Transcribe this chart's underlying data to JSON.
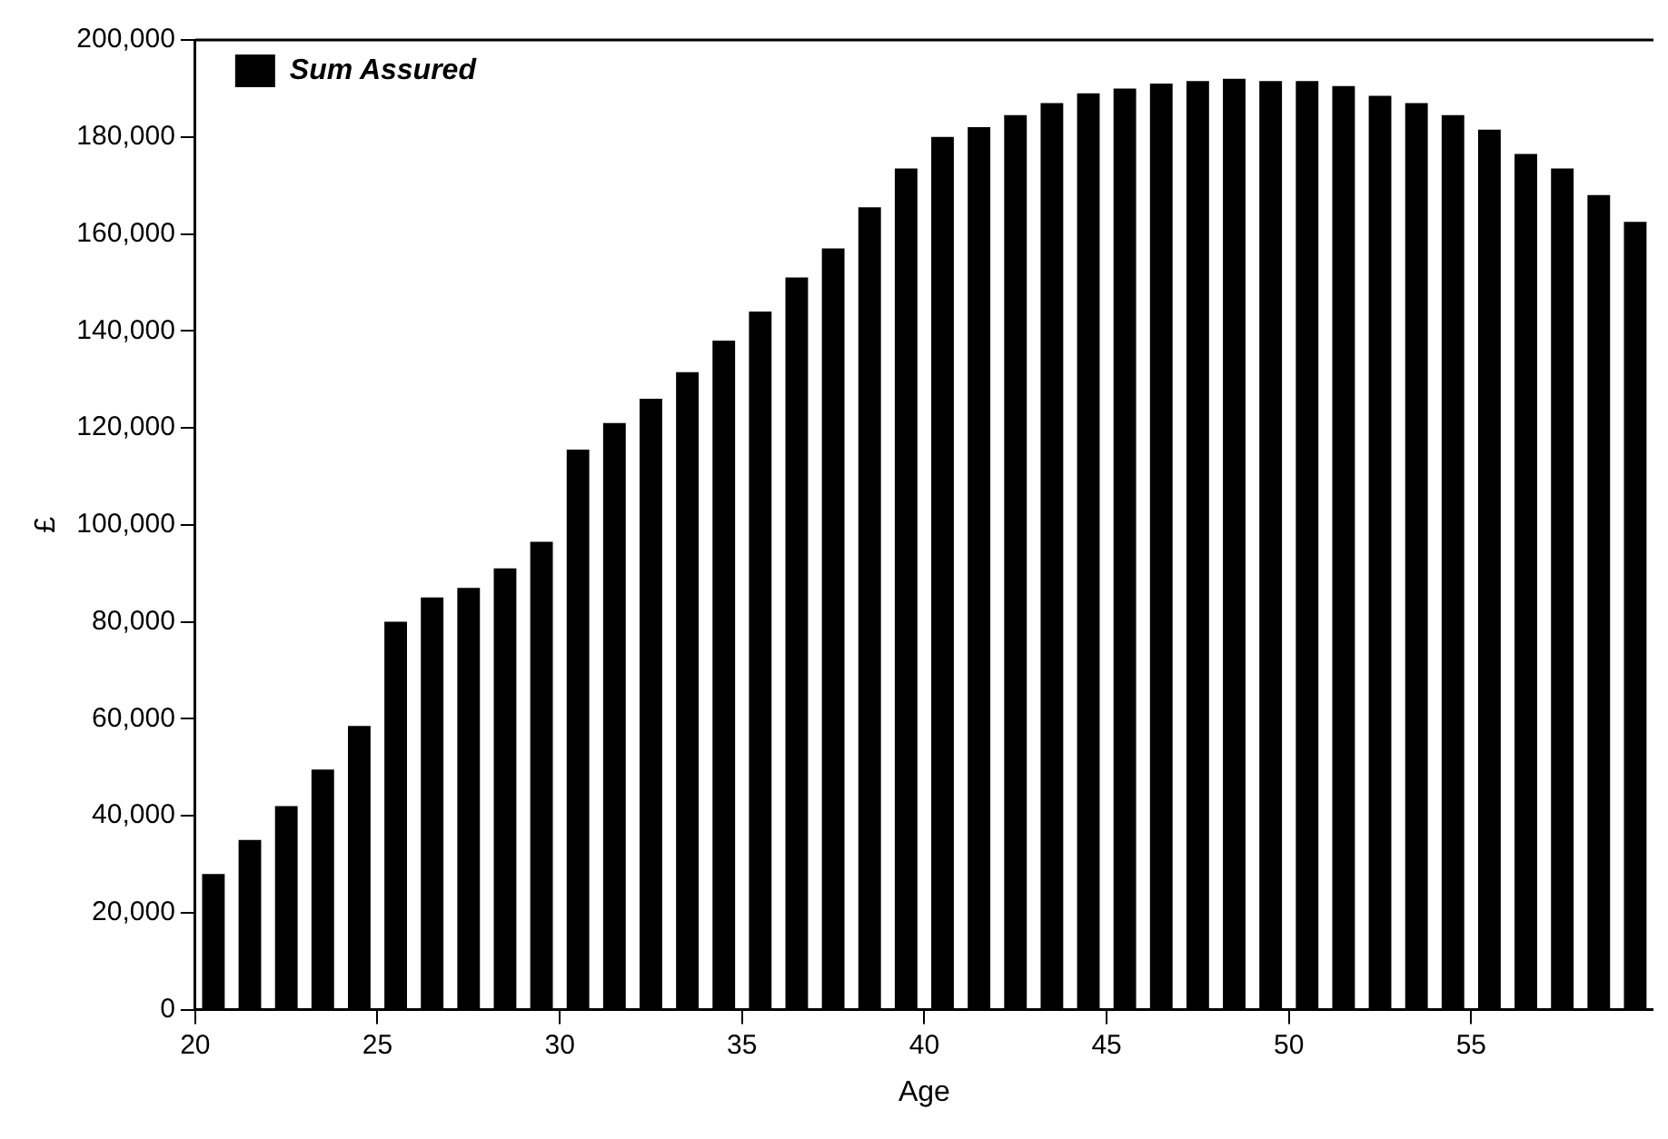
{
  "chart_data": {
    "type": "bar",
    "xlabel": "Age",
    "ylabel": "£",
    "x": [
      20.5,
      21.5,
      22.5,
      23.5,
      24.5,
      25.5,
      26.5,
      27.5,
      28.5,
      29.5,
      30.5,
      31.5,
      32.5,
      33.5,
      34.5,
      35.5,
      36.5,
      37.5,
      38.5,
      39.5,
      40.5,
      41.5,
      42.5,
      43.5,
      44.5,
      45.5,
      46.5,
      47.5,
      48.5,
      49.5,
      50.5,
      51.5,
      52.5,
      53.5,
      54.5,
      55.5,
      56.5,
      57.5,
      58.5,
      59.5
    ],
    "series": [
      {
        "name": "Sum Assured",
        "color": "#000000",
        "values": [
          28000,
          35000,
          42000,
          49500,
          58500,
          80000,
          85000,
          87000,
          91000,
          96500,
          115500,
          121000,
          126000,
          131500,
          138000,
          144000,
          151000,
          157000,
          165500,
          173500,
          180000,
          182000,
          184500,
          187000,
          189000,
          190000,
          191000,
          191500,
          192000,
          191500,
          191500,
          190500,
          188500,
          187000,
          184500,
          181500,
          176500,
          173500,
          168000,
          162500
        ]
      }
    ],
    "xlim": [
      20,
      60
    ],
    "xticks": [
      20,
      25,
      30,
      35,
      40,
      45,
      50,
      55
    ],
    "ylim": [
      0,
      200000
    ],
    "yticks": [
      0,
      {
        "value": 20000,
        "label": "20,000"
      },
      {
        "value": 40000,
        "label": "40,000"
      },
      {
        "value": 60000,
        "label": "60,000"
      },
      {
        "value": 80000,
        "label": "80,000"
      },
      {
        "value": 100000,
        "label": "100,000"
      },
      {
        "value": 120000,
        "label": "120,000"
      },
      {
        "value": 140000,
        "label": "140,000"
      },
      {
        "value": 160000,
        "label": "160,000"
      },
      {
        "value": 180000,
        "label": "180,000"
      },
      {
        "value": 200000,
        "label": "200,000"
      }
    ],
    "grid": false,
    "legend": "top left"
  }
}
